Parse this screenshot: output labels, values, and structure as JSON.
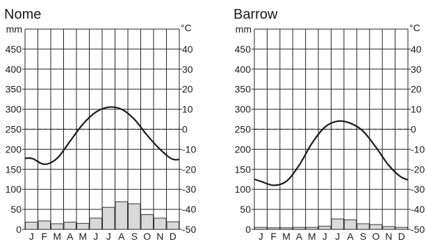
{
  "chart_data": [
    {
      "type": "bar",
      "title": "Nome",
      "left_unit": "mm",
      "right_unit": "°C",
      "categories": [
        "J",
        "F",
        "M",
        "A",
        "M",
        "J",
        "J",
        "A",
        "S",
        "O",
        "N",
        "D"
      ],
      "precip_ylim": [
        0,
        500
      ],
      "precip_ticks": [
        0,
        50,
        100,
        150,
        200,
        250,
        300,
        350,
        400,
        450
      ],
      "temp_ylim": [
        -50,
        50
      ],
      "temp_ticks": [
        -50,
        -40,
        -30,
        -20,
        -10,
        0,
        10,
        20,
        30,
        40
      ],
      "series": [
        {
          "kind": "bar",
          "axis": "left",
          "values": [
            18,
            21,
            14,
            18,
            15,
            28,
            55,
            69,
            64,
            37,
            28,
            19
          ]
        },
        {
          "kind": "line",
          "axis": "right",
          "values": [
            -14.5,
            -17.5,
            -14.5,
            -6,
            2.5,
            8.5,
            11,
            10,
            5,
            -3,
            -10,
            -15
          ]
        }
      ],
      "grid": true,
      "zero_line": "dashed"
    },
    {
      "type": "bar",
      "title": "Barrow",
      "left_unit": "mm",
      "right_unit": "°C",
      "categories": [
        "J",
        "F",
        "M",
        "A",
        "M",
        "J",
        "J",
        "A",
        "S",
        "O",
        "N",
        "D"
      ],
      "precip_ylim": [
        0,
        500
      ],
      "precip_ticks": [
        0,
        50,
        100,
        150,
        200,
        250,
        300,
        350,
        400,
        450
      ],
      "temp_ylim": [
        -50,
        50
      ],
      "temp_ticks": [
        -50,
        -40,
        -30,
        -20,
        -10,
        0,
        10,
        20,
        30,
        40
      ],
      "series": [
        {
          "kind": "bar",
          "axis": "left",
          "values": [
            5,
            4,
            4,
            5,
            5,
            8,
            26,
            24,
            14,
            12,
            7,
            5
          ]
        },
        {
          "kind": "line",
          "axis": "right",
          "values": [
            -26,
            -28,
            -26,
            -18,
            -7,
            1,
            4,
            3,
            -1,
            -9,
            -18,
            -24
          ]
        }
      ],
      "grid": true,
      "zero_line": "dashed"
    }
  ]
}
